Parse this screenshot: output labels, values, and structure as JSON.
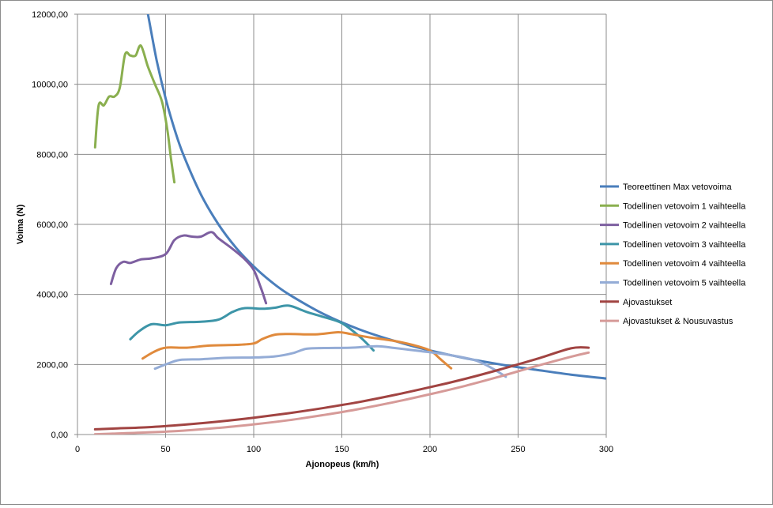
{
  "chart_data": {
    "type": "line",
    "title": "",
    "xlabel": "Ajonopeus (km/h)",
    "ylabel": "Voima (N)",
    "xlim": [
      0,
      300
    ],
    "ylim": [
      0,
      12000
    ],
    "grid": true,
    "legend_position": "right",
    "x_ticks": [
      0,
      50,
      100,
      150,
      200,
      250,
      300
    ],
    "x_tick_labels": [
      "0",
      "50",
      "100",
      "150",
      "200",
      "250",
      "300"
    ],
    "y_ticks": [
      0,
      2000,
      4000,
      6000,
      8000,
      10000,
      12000
    ],
    "y_tick_labels": [
      "0,00",
      "2000,00",
      "4000,00",
      "6000,00",
      "8000,00",
      "10000,00",
      "12000,00"
    ],
    "series": [
      {
        "name": "Teoreettinen Max vetovoima",
        "color": "#4a7ebb",
        "points": [
          [
            40,
            12000
          ],
          [
            45,
            10670
          ],
          [
            50,
            9600
          ],
          [
            55,
            8730
          ],
          [
            60,
            8000
          ],
          [
            70,
            6860
          ],
          [
            80,
            6000
          ],
          [
            90,
            5330
          ],
          [
            100,
            4800
          ],
          [
            110,
            4360
          ],
          [
            120,
            4000
          ],
          [
            140,
            3430
          ],
          [
            160,
            3000
          ],
          [
            180,
            2670
          ],
          [
            200,
            2400
          ],
          [
            220,
            2180
          ],
          [
            240,
            2000
          ],
          [
            260,
            1850
          ],
          [
            280,
            1710
          ],
          [
            300,
            1600
          ]
        ]
      },
      {
        "name": "Todellinen vetovoim 1 vaihteella",
        "color": "#8aaf4f",
        "points": [
          [
            10,
            8200
          ],
          [
            12,
            9400
          ],
          [
            15,
            9400
          ],
          [
            18,
            9650
          ],
          [
            21,
            9650
          ],
          [
            24,
            9900
          ],
          [
            27,
            10850
          ],
          [
            30,
            10820
          ],
          [
            33,
            10820
          ],
          [
            36,
            11100
          ],
          [
            40,
            10500
          ],
          [
            44,
            10000
          ],
          [
            48,
            9500
          ],
          [
            51,
            8700
          ],
          [
            53,
            7900
          ],
          [
            55,
            7200
          ]
        ]
      },
      {
        "name": "Todellinen vetovoim 2 vaihteella",
        "color": "#7d5fa0",
        "points": [
          [
            19,
            4300
          ],
          [
            22,
            4750
          ],
          [
            26,
            4930
          ],
          [
            30,
            4900
          ],
          [
            36,
            5000
          ],
          [
            42,
            5030
          ],
          [
            50,
            5150
          ],
          [
            55,
            5550
          ],
          [
            60,
            5680
          ],
          [
            65,
            5650
          ],
          [
            70,
            5650
          ],
          [
            76,
            5780
          ],
          [
            80,
            5600
          ],
          [
            88,
            5300
          ],
          [
            95,
            5000
          ],
          [
            100,
            4700
          ],
          [
            104,
            4200
          ],
          [
            107,
            3750
          ]
        ]
      },
      {
        "name": "Todellinen vetovoim 3 vaihteella",
        "color": "#3d95a8",
        "points": [
          [
            30,
            2720
          ],
          [
            35,
            2950
          ],
          [
            42,
            3150
          ],
          [
            50,
            3120
          ],
          [
            58,
            3200
          ],
          [
            70,
            3220
          ],
          [
            80,
            3280
          ],
          [
            88,
            3500
          ],
          [
            95,
            3610
          ],
          [
            105,
            3590
          ],
          [
            112,
            3620
          ],
          [
            120,
            3680
          ],
          [
            130,
            3500
          ],
          [
            140,
            3350
          ],
          [
            150,
            3180
          ],
          [
            160,
            2800
          ],
          [
            168,
            2400
          ]
        ]
      },
      {
        "name": "Todellinen vetovoim 4 vaihteella",
        "color": "#e08a3c",
        "points": [
          [
            37,
            2170
          ],
          [
            43,
            2350
          ],
          [
            50,
            2480
          ],
          [
            62,
            2480
          ],
          [
            75,
            2540
          ],
          [
            90,
            2560
          ],
          [
            100,
            2600
          ],
          [
            105,
            2730
          ],
          [
            112,
            2850
          ],
          [
            120,
            2870
          ],
          [
            135,
            2860
          ],
          [
            148,
            2920
          ],
          [
            155,
            2870
          ],
          [
            165,
            2780
          ],
          [
            180,
            2670
          ],
          [
            190,
            2560
          ],
          [
            200,
            2400
          ],
          [
            206,
            2150
          ],
          [
            212,
            1890
          ]
        ]
      },
      {
        "name": "Todellinen vetovoim 5 vaihteella",
        "color": "#94acd6",
        "points": [
          [
            44,
            1880
          ],
          [
            50,
            2000
          ],
          [
            58,
            2130
          ],
          [
            70,
            2150
          ],
          [
            85,
            2190
          ],
          [
            100,
            2200
          ],
          [
            112,
            2230
          ],
          [
            122,
            2320
          ],
          [
            130,
            2450
          ],
          [
            140,
            2470
          ],
          [
            155,
            2480
          ],
          [
            170,
            2520
          ],
          [
            180,
            2470
          ],
          [
            195,
            2380
          ],
          [
            210,
            2280
          ],
          [
            225,
            2130
          ],
          [
            235,
            1900
          ],
          [
            243,
            1650
          ]
        ]
      },
      {
        "name": "Ajovastukset",
        "color": "#a14442",
        "points": [
          [
            10,
            150
          ],
          [
            20,
            170
          ],
          [
            40,
            210
          ],
          [
            60,
            280
          ],
          [
            80,
            370
          ],
          [
            100,
            480
          ],
          [
            120,
            610
          ],
          [
            140,
            760
          ],
          [
            160,
            930
          ],
          [
            180,
            1130
          ],
          [
            200,
            1350
          ],
          [
            220,
            1590
          ],
          [
            240,
            1860
          ],
          [
            260,
            2150
          ],
          [
            280,
            2460
          ],
          [
            290,
            2480
          ]
        ]
      },
      {
        "name": "Ajovastukset &  Nousuvastus",
        "color": "#d69a98",
        "points": [
          [
            10,
            10
          ],
          [
            20,
            25
          ],
          [
            40,
            60
          ],
          [
            60,
            110
          ],
          [
            80,
            190
          ],
          [
            100,
            290
          ],
          [
            120,
            410
          ],
          [
            140,
            560
          ],
          [
            160,
            730
          ],
          [
            180,
            930
          ],
          [
            200,
            1150
          ],
          [
            220,
            1390
          ],
          [
            240,
            1660
          ],
          [
            260,
            1950
          ],
          [
            280,
            2220
          ],
          [
            290,
            2340
          ]
        ]
      }
    ]
  }
}
